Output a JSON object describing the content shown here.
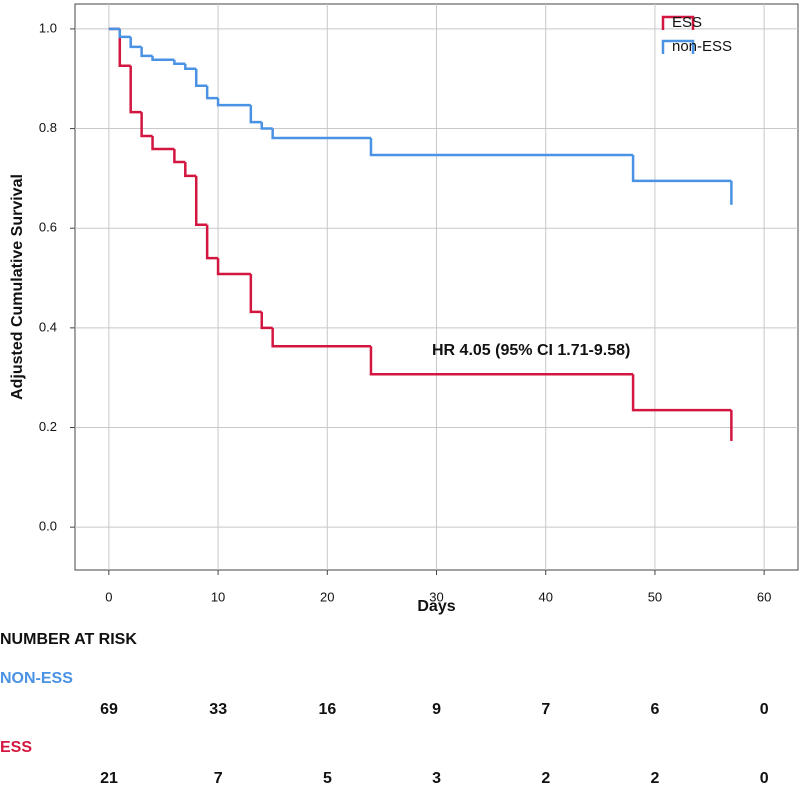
{
  "chart_data": {
    "type": "line",
    "step": "post",
    "xlabel": "Days",
    "ylabel": "Adjusted Cumulative Survival",
    "annotation": "HR 4.05 (95% CI 1.71-9.58)",
    "x": [
      0,
      1,
      2,
      3,
      4,
      6,
      7,
      8,
      9,
      10,
      13,
      14,
      15,
      24,
      48,
      57
    ],
    "series": [
      {
        "name": "ESS",
        "color": "#d3163f",
        "values": [
          1.0,
          0.926,
          0.833,
          0.785,
          0.759,
          0.733,
          0.705,
          0.607,
          0.54,
          0.508,
          0.432,
          0.4,
          0.363,
          0.307,
          0.235,
          0.173
        ]
      },
      {
        "name": "non-ESS",
        "color": "#4a92e3",
        "values": [
          1.0,
          0.984,
          0.964,
          0.946,
          0.938,
          0.93,
          0.92,
          0.886,
          0.861,
          0.847,
          0.813,
          0.8,
          0.781,
          0.747,
          0.695,
          0.647
        ]
      }
    ],
    "xlim": [
      -3.1,
      63.1
    ],
    "xticks": [
      0,
      10,
      20,
      30,
      40,
      50,
      60
    ],
    "ylim": [
      -0.086,
      1.05
    ],
    "yticks": [
      {
        "value": 0,
        "label": "0.0"
      },
      0.2,
      0.4,
      0.6,
      0.8,
      {
        "value": 1,
        "label": "1.0"
      }
    ],
    "grid": true,
    "legend": "upper right",
    "risk_table": {
      "title": "NUMBER AT RISK",
      "rows": [
        {
          "name": "NON-ESS",
          "color": "#4a92e3",
          "counts": [
            "69",
            "33",
            "16",
            "9",
            "7",
            "6",
            "0"
          ]
        },
        {
          "name": "ESS",
          "color": "#d3163f",
          "counts": [
            "21",
            "7",
            "5",
            "3",
            "2",
            "2",
            "0"
          ]
        }
      ]
    }
  }
}
